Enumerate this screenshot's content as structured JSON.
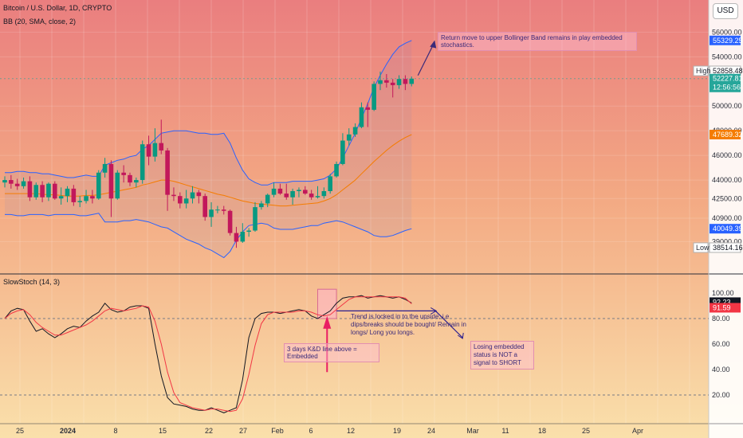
{
  "header": {
    "symbol": "Bitcoin / U.S. Dollar, 1D, CRYPTO",
    "indicator": "BB (20, SMA, close, 2)",
    "stoch_label": "SlowStoch (14, 3)",
    "currency_button": "USD"
  },
  "price_axis": {
    "ticks": [
      "56000.00",
      "54000.00",
      "50000.00",
      "48000.00",
      "46000.00",
      "44000.00",
      "42500.00",
      "40900.00",
      "39000.00"
    ],
    "badges": [
      {
        "text": "55329.25",
        "color": "#2962ff"
      },
      {
        "text": "52858.48",
        "color": "#ffffff",
        "label": "High"
      },
      {
        "text": "52227.81",
        "color": "#26a69a"
      },
      {
        "text": "12:56:56",
        "color": "#26a69a"
      },
      {
        "text": "47689.32",
        "color": "#f57c00"
      },
      {
        "text": "40049.39",
        "color": "#2962ff"
      },
      {
        "text": "38514.16",
        "color": "#ffffff",
        "label": "Low"
      }
    ]
  },
  "stoch_axis": {
    "ticks": [
      "100.00",
      "80.00",
      "60.00",
      "40.00",
      "20.00"
    ],
    "badges": [
      {
        "text": "92.23",
        "color": "#131722"
      },
      {
        "text": "91.59",
        "color": "#f23645"
      }
    ]
  },
  "time_axis": [
    "25",
    "2024",
    "8",
    "15",
    "22",
    "27",
    "Feb",
    "6",
    "12",
    "19",
    "24",
    "Mar",
    "11",
    "18",
    "25",
    "Apr"
  ],
  "annotations": {
    "top_note": "Return move to upper Bollinger Band remains in play embedded stochastics.",
    "trend_note": "Trend is locked in to the upside, i.e dips/breaks should be bought/ Remain in longs/ Long you longs.",
    "embedded_note": "3 days K&D line above = Embedded",
    "losing_note": "Losing embedded status is NOT a signal to SHORT"
  },
  "chart_data": [
    {
      "type": "candlestick",
      "title": "Bitcoin / U.S. Dollar, 1D, CRYPTO",
      "ylim": [
        37800,
        56800
      ],
      "colors": {
        "up": "#089981",
        "down": "#c2185b",
        "bb_upper": "#2962ff",
        "bb_lower": "#2962ff",
        "bb_basis": "#f57c00"
      },
      "dates": [
        "Dec 17",
        "Dec 18",
        "Dec 19",
        "Dec 20",
        "Dec 21",
        "Dec 22",
        "Dec 23",
        "Dec 24",
        "Dec 25",
        "Dec 26",
        "Dec 27",
        "Dec 28",
        "Dec 29",
        "Dec 30",
        "Dec 31",
        "Jan 1",
        "Jan 2",
        "Jan 3",
        "Jan 4",
        "Jan 5",
        "Jan 6",
        "Jan 7",
        "Jan 8",
        "Jan 9",
        "Jan 10",
        "Jan 11",
        "Jan 12",
        "Jan 13",
        "Jan 14",
        "Jan 15",
        "Jan 16",
        "Jan 17",
        "Jan 18",
        "Jan 19",
        "Jan 20",
        "Jan 21",
        "Jan 22",
        "Jan 23",
        "Jan 24",
        "Jan 25",
        "Jan 26",
        "Jan 27",
        "Jan 28",
        "Jan 29",
        "Jan 30",
        "Jan 31",
        "Feb 1",
        "Feb 2",
        "Feb 3",
        "Feb 4",
        "Feb 5",
        "Feb 6",
        "Feb 7",
        "Feb 8",
        "Feb 9",
        "Feb 10",
        "Feb 11",
        "Feb 12",
        "Feb 13",
        "Feb 14",
        "Feb 15",
        "Feb 16",
        "Feb 17",
        "Feb 18",
        "Feb 19",
        "Feb 20"
      ],
      "ohlc": [
        [
          43800,
          44300,
          43400,
          44000
        ],
        [
          44000,
          44400,
          43300,
          43700
        ],
        [
          43700,
          44100,
          43200,
          43500
        ],
        [
          43500,
          44200,
          43300,
          43900
        ],
        [
          43900,
          44300,
          42300,
          42600
        ],
        [
          42600,
          43800,
          42400,
          43600
        ],
        [
          43600,
          43900,
          42200,
          42600
        ],
        [
          42600,
          43800,
          42300,
          43700
        ],
        [
          43700,
          43900,
          42400,
          42500
        ],
        [
          42500,
          43400,
          42000,
          42700
        ],
        [
          42700,
          43500,
          42200,
          43300
        ],
        [
          43300,
          43600,
          41900,
          42200
        ],
        [
          42200,
          42700,
          41800,
          42300
        ],
        [
          42300,
          43200,
          42100,
          42700
        ],
        [
          42700,
          43200,
          42100,
          42500
        ],
        [
          42500,
          44800,
          42400,
          44600
        ],
        [
          44600,
          45800,
          44200,
          45300
        ],
        [
          45300,
          45600,
          41000,
          42500
        ],
        [
          42500,
          44800,
          42400,
          44600
        ],
        [
          44600,
          45200,
          43800,
          44400
        ],
        [
          44400,
          44600,
          43500,
          43800
        ],
        [
          43800,
          44200,
          43400,
          44000
        ],
        [
          44000,
          47200,
          43700,
          46900
        ],
        [
          46900,
          47600,
          45200,
          45900
        ],
        [
          45900,
          48200,
          45500,
          47000
        ],
        [
          47000,
          48900,
          46100,
          46400
        ],
        [
          46400,
          46600,
          41500,
          42800
        ],
        [
          42800,
          43400,
          42300,
          42700
        ],
        [
          42700,
          43000,
          41700,
          42100
        ],
        [
          42100,
          43200,
          41700,
          42500
        ],
        [
          42500,
          43500,
          42100,
          43000
        ],
        [
          43000,
          43200,
          42100,
          42700
        ],
        [
          42700,
          42900,
          40700,
          41000
        ],
        [
          41000,
          42200,
          40200,
          41600
        ],
        [
          41600,
          41900,
          41300,
          41600
        ],
        [
          41600,
          41900,
          41200,
          41500
        ],
        [
          41500,
          41600,
          39500,
          39700
        ],
        [
          39700,
          40200,
          38500,
          39000
        ],
        [
          39000,
          40500,
          38900,
          39800
        ],
        [
          39800,
          40100,
          39400,
          39900
        ],
        [
          39900,
          42200,
          39800,
          41800
        ],
        [
          41800,
          42300,
          41600,
          42100
        ],
        [
          42100,
          42900,
          41800,
          42800
        ],
        [
          42800,
          43800,
          42600,
          43300
        ],
        [
          43300,
          43700,
          42800,
          42900
        ],
        [
          42900,
          43700,
          42400,
          42600
        ],
        [
          42600,
          43300,
          42000,
          43100
        ],
        [
          43100,
          43400,
          42600,
          43200
        ],
        [
          43200,
          43500,
          42800,
          42900
        ],
        [
          42900,
          43200,
          42400,
          42600
        ],
        [
          42600,
          43500,
          42500,
          42700
        ],
        [
          42700,
          43400,
          42500,
          43100
        ],
        [
          43100,
          44500,
          42900,
          44300
        ],
        [
          44300,
          45500,
          44200,
          45300
        ],
        [
          45300,
          47800,
          45200,
          47200
        ],
        [
          47200,
          48200,
          46800,
          47700
        ],
        [
          47700,
          48600,
          47500,
          48300
        ],
        [
          48300,
          50300,
          48200,
          49900
        ],
        [
          49900,
          50300,
          48300,
          49700
        ],
        [
          49700,
          52000,
          49600,
          51800
        ],
        [
          51800,
          52800,
          51300,
          52100
        ],
        [
          52100,
          52600,
          51500,
          51900
        ],
        [
          51900,
          52200,
          50700,
          51700
        ],
        [
          51700,
          52500,
          51400,
          52200
        ],
        [
          52200,
          52500,
          51300,
          51800
        ],
        [
          51800,
          52400,
          51600,
          52227.81
        ]
      ],
      "bb_upper": [
        44600,
        44600,
        44700,
        44700,
        44600,
        44600,
        44500,
        44500,
        44400,
        44300,
        44200,
        44200,
        44300,
        44400,
        44300,
        44300,
        45200,
        45400,
        45600,
        45700,
        45900,
        46000,
        46500,
        46800,
        47300,
        47800,
        47900,
        48000,
        48000,
        48000,
        47900,
        47800,
        47800,
        47700,
        47700,
        47800,
        47000,
        45800,
        44800,
        44100,
        43800,
        43600,
        43600,
        43800,
        43800,
        43800,
        43900,
        43900,
        43900,
        43900,
        44000,
        44100,
        44400,
        44900,
        45800,
        46800,
        47800,
        49000,
        50200,
        51500,
        52500,
        53400,
        54200,
        54800,
        55100,
        55329.25
      ],
      "bb_basis": [
        42900,
        42900,
        42900,
        42900,
        42900,
        42900,
        42850,
        42800,
        42800,
        42750,
        42700,
        42700,
        42700,
        42750,
        42750,
        42800,
        42900,
        43000,
        43100,
        43200,
        43300,
        43400,
        43600,
        43700,
        43850,
        44000,
        44000,
        43900,
        43750,
        43600,
        43450,
        43300,
        43150,
        43000,
        42850,
        42750,
        42600,
        42450,
        42300,
        42200,
        42100,
        42050,
        42000,
        41950,
        41900,
        41900,
        41950,
        42000,
        42050,
        42100,
        42150,
        42300,
        42500,
        42800,
        43200,
        43600,
        44000,
        44500,
        45000,
        45500,
        45950,
        46400,
        46800,
        47150,
        47450,
        47689.32
      ],
      "bb_lower": [
        41200,
        41200,
        41100,
        41100,
        41200,
        41200,
        41200,
        41100,
        41200,
        41200,
        41200,
        41200,
        41100,
        41100,
        41200,
        41300,
        40600,
        40600,
        40600,
        40700,
        40700,
        40800,
        40700,
        40600,
        40400,
        40200,
        40100,
        39800,
        39500,
        39200,
        39000,
        38800,
        38500,
        38300,
        38000,
        37700,
        38200,
        39100,
        39800,
        40300,
        40400,
        40500,
        40400,
        40100,
        40000,
        40000,
        40000,
        40100,
        40200,
        40300,
        40300,
        40500,
        40600,
        40700,
        40600,
        40400,
        40200,
        40000,
        39800,
        39500,
        39400,
        39400,
        39500,
        39700,
        39900,
        40049.39
      ],
      "projection": {
        "x_start": "Feb 20",
        "x_end": "Feb 23",
        "y_end": 55600
      }
    },
    {
      "type": "line",
      "title": "SlowStoch (14, 3)",
      "ylim": [
        0,
        110
      ],
      "reference_lines": [
        80,
        20
      ],
      "series": [
        {
          "color": "#131722",
          "values": [
            80,
            86,
            88,
            87,
            78,
            70,
            72,
            68,
            65,
            68,
            72,
            74,
            73,
            78,
            82,
            85,
            92,
            87,
            85,
            86,
            89,
            90,
            90,
            88,
            60,
            35,
            18,
            13,
            12,
            11,
            9,
            8,
            8,
            10,
            8,
            6,
            8,
            10,
            32,
            65,
            80,
            84,
            85,
            85,
            84,
            85,
            86,
            87,
            86,
            82,
            80,
            83,
            86,
            92,
            96,
            97,
            97,
            98,
            96,
            97,
            98,
            97,
            96,
            97,
            95,
            92.23
          ]
        },
        {
          "color": "#f23645",
          "values": [
            80,
            84,
            86,
            87,
            83,
            77,
            73,
            70,
            67,
            67,
            69,
            71,
            73,
            75,
            78,
            82,
            86,
            88,
            87,
            86,
            87,
            88,
            90,
            89,
            78,
            60,
            38,
            22,
            14,
            12,
            10,
            9,
            8,
            9,
            9,
            8,
            7,
            8,
            17,
            36,
            59,
            76,
            83,
            85,
            85,
            85,
            85,
            86,
            86,
            85,
            83,
            82,
            83,
            87,
            91,
            95,
            97,
            97,
            97,
            97,
            97,
            97,
            97,
            97,
            96,
            91.59
          ]
        }
      ],
      "highlight": {
        "from": "Feb 5",
        "to": "Feb 8"
      },
      "projection_points": [
        {
          "x": "Feb 8",
          "y": 86
        },
        {
          "x": "Feb 24",
          "y": 86
        },
        {
          "x": "Mar 3",
          "y": 65
        }
      ]
    }
  ]
}
